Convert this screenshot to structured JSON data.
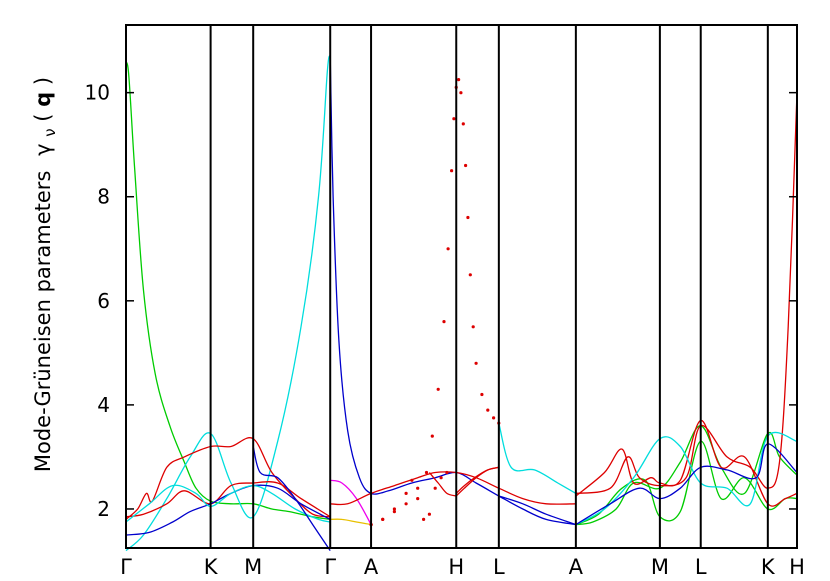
{
  "chart_data": {
    "type": "line",
    "title": "",
    "ylabel_main": "Mode-Grüneisen parameters",
    "ylabel_symbol": "γ",
    "ylabel_sub": "ν",
    "ylabel_arg_open": "(",
    "ylabel_arg": "q",
    "ylabel_arg_close": ")",
    "xlabel": "",
    "ylim": [
      1.25,
      11.3
    ],
    "xlim": [
      0,
      11.5
    ],
    "grid": false,
    "legend": "none",
    "y_ticks": [
      2,
      4,
      6,
      8,
      10
    ],
    "y_tick_labels": [
      "2",
      "4",
      "6",
      "8",
      "10"
    ],
    "high_symmetry_points": [
      {
        "label": "Γ",
        "x": 0
      },
      {
        "label": "K",
        "x": 1.45
      },
      {
        "label": "M",
        "x": 2.18
      },
      {
        "label": "Γ",
        "x": 3.5
      },
      {
        "label": "A",
        "x": 4.2
      },
      {
        "label": "H",
        "x": 5.66
      },
      {
        "label": "L",
        "x": 6.39
      },
      {
        "label": "A",
        "x": 7.71
      },
      {
        "label": "M",
        "x": 9.15
      },
      {
        "label": "L",
        "x": 9.85
      },
      {
        "label": "K",
        "x": 11.0
      },
      {
        "label": "H",
        "x": 11.5
      }
    ],
    "colors": {
      "green": "#00cc00",
      "red": "#dd0000",
      "cyan": "#00dddd",
      "blue": "#0000cc",
      "magenta": "#ee00ee",
      "yellow": "#e8c000",
      "axis": "#000000"
    },
    "series": [
      {
        "color": "green",
        "x": [
          0,
          0.05,
          0.15,
          0.3,
          0.5,
          0.75,
          1.0,
          1.2,
          1.45,
          1.8,
          2.18,
          2.5,
          2.8,
          3.2,
          3.5
        ],
        "y": [
          10.6,
          10.3,
          8.5,
          6.2,
          4.6,
          3.6,
          2.9,
          2.4,
          2.15,
          2.1,
          2.1,
          2.0,
          1.95,
          1.85,
          1.8
        ]
      },
      {
        "color": "cyan",
        "x": [
          0,
          0.3,
          0.7,
          1.1,
          1.45,
          1.8,
          2.18,
          2.6,
          3.0,
          3.3,
          3.45,
          3.5
        ],
        "y": [
          1.2,
          1.5,
          2.2,
          3.0,
          3.45,
          2.5,
          1.85,
          3.3,
          5.5,
          8.0,
          10.4,
          10.7
        ]
      },
      {
        "color": "red",
        "x": [
          0,
          0.2,
          0.35,
          0.45,
          0.7,
          1.0,
          1.45,
          1.8,
          2.18,
          2.5,
          2.9,
          3.2,
          3.5
        ],
        "y": [
          1.8,
          2.0,
          2.3,
          2.15,
          2.8,
          3.0,
          3.2,
          3.2,
          3.35,
          2.7,
          2.2,
          1.9,
          1.85
        ]
      },
      {
        "color": "red",
        "x": [
          0,
          0.3,
          0.7,
          1.0,
          1.45,
          1.8,
          2.18,
          2.6,
          3.0,
          3.5
        ],
        "y": [
          1.85,
          1.9,
          2.1,
          2.35,
          2.1,
          2.45,
          2.5,
          2.5,
          2.2,
          1.85
        ]
      },
      {
        "color": "blue",
        "x": [
          0,
          0.4,
          0.8,
          1.1,
          1.45,
          1.8,
          2.18,
          2.6,
          3.0,
          3.5
        ],
        "y": [
          1.5,
          1.55,
          1.75,
          1.95,
          2.1,
          2.3,
          2.45,
          2.4,
          2.1,
          1.8
        ]
      },
      {
        "color": "cyan",
        "x": [
          0,
          0.4,
          0.8,
          1.2,
          1.45,
          1.8,
          2.18,
          2.5,
          2.9,
          3.3,
          3.5
        ],
        "y": [
          1.75,
          2.1,
          2.45,
          2.3,
          2.05,
          2.3,
          2.45,
          2.3,
          2.0,
          1.8,
          1.75
        ]
      },
      {
        "color": "blue",
        "x": [
          2.18,
          2.3,
          2.6,
          2.9,
          3.2,
          3.5
        ],
        "y": [
          3.2,
          2.7,
          2.6,
          2.2,
          1.7,
          1.2
        ]
      },
      {
        "color": "blue",
        "x": [
          3.5,
          3.55,
          3.65,
          3.8,
          4.0,
          4.2,
          4.5,
          4.9,
          5.3,
          5.66,
          6.0,
          6.39,
          6.8,
          7.2,
          7.71
        ],
        "y": [
          10.7,
          8.0,
          5.2,
          3.5,
          2.6,
          2.3,
          2.35,
          2.5,
          2.6,
          2.7,
          2.5,
          2.25,
          2.0,
          1.8,
          1.7
        ]
      },
      {
        "color": "magenta",
        "x": [
          3.5,
          3.7,
          3.95,
          4.2
        ],
        "y": [
          2.55,
          2.5,
          2.2,
          1.7
        ]
      },
      {
        "color": "yellow",
        "x": [
          3.5,
          3.7,
          3.95,
          4.2
        ],
        "y": [
          1.8,
          1.8,
          1.75,
          1.7
        ]
      },
      {
        "color": "red",
        "x": [
          3.5,
          3.8,
          4.2,
          4.6,
          5.0,
          5.3,
          5.66,
          6.0,
          6.39,
          6.8,
          7.2,
          7.71
        ],
        "y": [
          2.1,
          2.1,
          2.3,
          2.45,
          2.6,
          2.7,
          2.7,
          2.6,
          2.4,
          2.2,
          2.1,
          2.1
        ]
      },
      {
        "color": "red",
        "x": [
          5.66,
          5.8,
          6.0,
          6.2,
          6.39
        ],
        "y": [
          2.25,
          2.4,
          2.6,
          2.75,
          2.8
        ]
      },
      {
        "color": "red",
        "x": [
          5.66,
          5.8,
          6.0,
          6.2,
          6.39
        ],
        "y": [
          2.3,
          2.45,
          2.62,
          2.75,
          2.8
        ]
      },
      {
        "color": "red",
        "x": [
          5.2,
          5.35,
          5.5,
          5.66
        ],
        "y": [
          2.7,
          2.5,
          2.3,
          2.25
        ]
      },
      {
        "color": "cyan",
        "x": [
          6.39,
          6.6,
          7.0,
          7.4,
          7.71
        ],
        "y": [
          3.65,
          2.8,
          2.75,
          2.5,
          2.3
        ]
      },
      {
        "color": "blue",
        "x": [
          6.39,
          6.8,
          7.2,
          7.71
        ],
        "y": [
          2.25,
          2.1,
          1.9,
          1.7
        ]
      },
      {
        "color": "green",
        "x": [
          7.71,
          8.0,
          8.4,
          8.7,
          9.15,
          9.5,
          9.85,
          10.2,
          10.6,
          11.0,
          11.2,
          11.5
        ],
        "y": [
          1.7,
          1.75,
          2.0,
          2.5,
          2.4,
          2.9,
          3.6,
          2.8,
          2.3,
          3.45,
          3.0,
          2.65
        ]
      },
      {
        "color": "green",
        "x": [
          7.71,
          8.1,
          8.5,
          8.9,
          9.15,
          9.5,
          9.85,
          10.2,
          10.6,
          11.0,
          11.3,
          11.5
        ],
        "y": [
          1.7,
          1.9,
          2.4,
          2.55,
          1.85,
          1.95,
          3.3,
          2.2,
          2.6,
          2.0,
          2.2,
          2.2
        ]
      },
      {
        "color": "red",
        "x": [
          7.71,
          8.2,
          8.5,
          8.7,
          9.0,
          9.15,
          9.5,
          9.85,
          10.2,
          10.6,
          11.0,
          11.3,
          11.5
        ],
        "y": [
          2.25,
          2.7,
          3.15,
          2.5,
          2.6,
          2.5,
          2.55,
          3.7,
          2.8,
          3.0,
          2.1,
          2.2,
          2.3
        ]
      },
      {
        "color": "red",
        "x": [
          7.71,
          8.3,
          8.6,
          8.8,
          9.15,
          9.6,
          9.85,
          10.3,
          10.7,
          11.0,
          11.2,
          11.35,
          11.5
        ],
        "y": [
          2.3,
          2.4,
          3.0,
          2.6,
          2.45,
          2.6,
          3.6,
          3.0,
          2.8,
          2.4,
          2.9,
          5.5,
          10.0
        ]
      },
      {
        "color": "cyan",
        "x": [
          7.71,
          8.2,
          8.7,
          9.15,
          9.5,
          9.85,
          10.3,
          10.7,
          11.0,
          11.5
        ],
        "y": [
          1.7,
          2.0,
          2.6,
          3.35,
          3.2,
          2.5,
          2.4,
          2.1,
          3.4,
          3.3
        ]
      },
      {
        "color": "blue",
        "x": [
          7.71,
          8.3,
          8.8,
          9.15,
          9.5,
          9.85,
          10.3,
          10.8,
          11.0,
          11.5
        ],
        "y": [
          1.7,
          2.1,
          2.4,
          2.2,
          2.4,
          2.8,
          2.75,
          2.6,
          3.25,
          2.7
        ]
      }
    ],
    "dotted_series": [
      {
        "color": "red",
        "x": [
          4.2,
          4.4,
          4.6,
          4.8,
          5.0,
          5.15,
          5.25,
          5.35,
          5.45,
          5.52,
          5.58,
          5.62,
          5.66,
          5.7,
          5.74,
          5.78,
          5.82,
          5.86,
          5.9,
          5.95,
          6.0,
          6.1,
          6.2,
          6.3,
          6.39
        ],
        "y": [
          1.7,
          1.8,
          1.95,
          2.1,
          2.4,
          2.7,
          3.4,
          4.3,
          5.6,
          7.0,
          8.5,
          9.5,
          10.1,
          10.25,
          10.0,
          9.4,
          8.6,
          7.6,
          6.5,
          5.5,
          4.8,
          4.2,
          3.9,
          3.75,
          3.65
        ]
      },
      {
        "color": "red",
        "x": [
          4.2,
          4.4,
          4.6,
          4.8,
          4.9,
          5.0,
          5.1,
          5.2,
          5.3,
          5.4,
          5.5
        ],
        "y": [
          1.7,
          1.8,
          2.0,
          2.3,
          2.55,
          2.2,
          1.8,
          1.9,
          2.4,
          2.6,
          2.7
        ]
      }
    ]
  }
}
